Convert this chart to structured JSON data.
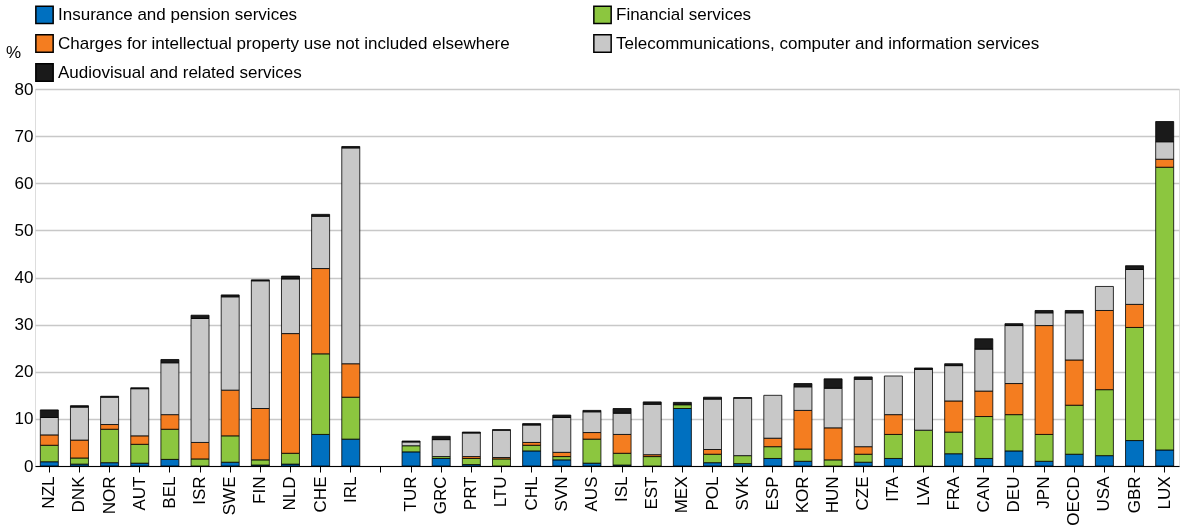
{
  "chart_data": {
    "type": "bar",
    "stacked": true,
    "ylabel": "%",
    "ylim": [
      0,
      80
    ],
    "yticks": [
      0,
      10,
      20,
      30,
      40,
      50,
      60,
      70,
      80
    ],
    "grid": "y",
    "legend": "top",
    "categories": [
      "NZL",
      "DNK",
      "NOR",
      "AUT",
      "BEL",
      "ISR",
      "SWE",
      "FIN",
      "NLD",
      "CHE",
      "IRL",
      null,
      "TUR",
      "GRC",
      "PRT",
      "LTU",
      "CHL",
      "SVN",
      "AUS",
      "ISL",
      "EST",
      "MEX",
      "POL",
      "SVK",
      "ESP",
      "KOR",
      "HUN",
      "CZE",
      "ITA",
      "LVA",
      "FRA",
      "CAN",
      "DEU",
      "JPN",
      "OECD",
      "USA",
      "GBR",
      "LUX"
    ],
    "series": [
      {
        "name": "Insurance and pension services",
        "color": "#0070c0",
        "values": [
          0.9,
          0.4,
          0.7,
          0.6,
          1.4,
          0,
          0.8,
          0.2,
          0.4,
          6.7,
          5.7,
          null,
          3.0,
          1.6,
          0.3,
          0,
          3.2,
          1.3,
          0.6,
          0.2,
          0,
          12.2,
          0.7,
          0.5,
          1.6,
          1.0,
          0,
          0.8,
          1.6,
          0,
          2.6,
          1.6,
          3.2,
          1.0,
          2.5,
          2.2,
          5.4,
          3.4
        ]
      },
      {
        "name": "Financial services",
        "color": "#8cc63f",
        "values": [
          3.5,
          1.3,
          7.1,
          4.0,
          6.4,
          1.5,
          5.6,
          1.1,
          2.3,
          17.1,
          8.9,
          null,
          1.3,
          0.4,
          1.3,
          1.5,
          1.2,
          0.7,
          5.1,
          2.5,
          2.0,
          0.8,
          1.8,
          1.7,
          2.5,
          2.6,
          1.3,
          1.7,
          5.1,
          7.6,
          4.6,
          8.9,
          7.7,
          5.7,
          10.4,
          14.0,
          24.0,
          60.0
        ]
      },
      {
        "name": "Charges for intellectual property use not included elsewhere",
        "color": "#f47d20",
        "values": [
          2.2,
          3.8,
          1.0,
          1.8,
          3.1,
          3.5,
          9.7,
          10.9,
          25.4,
          18.1,
          7.1,
          null,
          0,
          null,
          0.4,
          0.3,
          0.6,
          0.9,
          1.4,
          4.0,
          0.4,
          0,
          1.0,
          null,
          1.8,
          8.2,
          6.8,
          1.6,
          4.2,
          0,
          6.6,
          5.4,
          6.6,
          23.1,
          9.6,
          16.8,
          4.9,
          1.7
        ]
      },
      {
        "name": "Telecommunications, computer and information services",
        "color": "#c8c8c8",
        "values": [
          3.7,
          7.0,
          5.8,
          10.0,
          11.0,
          26.3,
          19.8,
          27.1,
          11.6,
          11.1,
          45.8,
          null,
          0.8,
          3.6,
          5.0,
          5.8,
          3.7,
          7.4,
          4.4,
          4.5,
          10.7,
          null,
          10.7,
          12.2,
          9.1,
          5.0,
          8.4,
          14.3,
          8.2,
          12.9,
          7.5,
          8.9,
          12.3,
          2.7,
          10.0,
          5.1,
          7.4,
          3.7
        ]
      },
      {
        "name": "Audiovisual and related services",
        "color": "#1a1a1a",
        "values": [
          1.6,
          0.3,
          0.2,
          0.2,
          0.7,
          0.7,
          0.4,
          0.2,
          0.6,
          0.4,
          0.3,
          null,
          0.2,
          0.7,
          0.2,
          0.1,
          0.3,
          0.5,
          0.3,
          1.0,
          0.5,
          0.5,
          0.4,
          0.1,
          0,
          0.7,
          2.0,
          0.5,
          0,
          0.3,
          0.4,
          2.2,
          0.4,
          0.5,
          0.5,
          0,
          0.8,
          4.3
        ]
      }
    ]
  }
}
